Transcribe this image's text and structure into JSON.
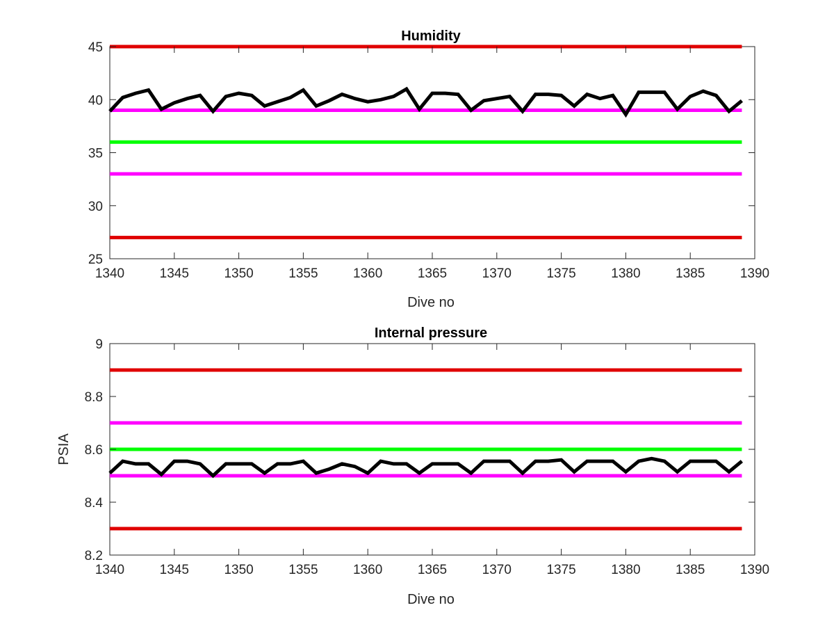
{
  "chart_data": [
    {
      "type": "line",
      "title": "Humidity",
      "xlabel": "Dive no",
      "ylabel": "",
      "xlim": [
        1340,
        1390
      ],
      "ylim": [
        25,
        45
      ],
      "xticks": [
        1340,
        1345,
        1350,
        1355,
        1360,
        1365,
        1370,
        1375,
        1380,
        1385,
        1390
      ],
      "yticks": [
        25,
        30,
        35,
        40,
        45
      ],
      "grid": false,
      "reference_lines": [
        {
          "y": 45,
          "color": "#e00000"
        },
        {
          "y": 39,
          "color": "#ff00ff"
        },
        {
          "y": 36,
          "color": "#00ff00"
        },
        {
          "y": 33,
          "color": "#ff00ff"
        },
        {
          "y": 27,
          "color": "#e00000"
        }
      ],
      "series": [
        {
          "color": "#000000",
          "x": [
            1340,
            1341,
            1342,
            1343,
            1344,
            1345,
            1346,
            1347,
            1348,
            1349,
            1350,
            1351,
            1352,
            1353,
            1354,
            1355,
            1356,
            1357,
            1358,
            1359,
            1360,
            1361,
            1362,
            1363,
            1364,
            1365,
            1366,
            1367,
            1368,
            1369,
            1370,
            1371,
            1372,
            1373,
            1374,
            1375,
            1376,
            1377,
            1378,
            1379,
            1380,
            1381,
            1382,
            1383,
            1384,
            1385,
            1386,
            1387,
            1388,
            1389
          ],
          "y": [
            38.9,
            40.2,
            40.6,
            40.9,
            39.1,
            39.7,
            40.1,
            40.4,
            38.9,
            40.3,
            40.6,
            40.4,
            39.4,
            39.8,
            40.2,
            40.9,
            39.4,
            39.9,
            40.5,
            40.1,
            39.8,
            40.0,
            40.3,
            41.0,
            39.1,
            40.6,
            40.6,
            40.5,
            39.0,
            39.9,
            40.1,
            40.3,
            38.9,
            40.5,
            40.5,
            40.4,
            39.4,
            40.5,
            40.1,
            40.4,
            38.6,
            40.7,
            40.7,
            40.7,
            39.1,
            40.3,
            40.8,
            40.4,
            38.9,
            39.9
          ]
        }
      ]
    },
    {
      "type": "line",
      "title": "Internal pressure",
      "xlabel": "Dive no",
      "ylabel": "PSIA",
      "xlim": [
        1340,
        1390
      ],
      "ylim": [
        8.2,
        9
      ],
      "xticks": [
        1340,
        1345,
        1350,
        1355,
        1360,
        1365,
        1370,
        1375,
        1380,
        1385,
        1390
      ],
      "yticks": [
        8.2,
        8.4,
        8.6,
        8.8,
        9
      ],
      "grid": false,
      "reference_lines": [
        {
          "y": 8.9,
          "color": "#e00000"
        },
        {
          "y": 8.7,
          "color": "#ff00ff"
        },
        {
          "y": 8.6,
          "color": "#00ff00"
        },
        {
          "y": 8.5,
          "color": "#ff00ff"
        },
        {
          "y": 8.3,
          "color": "#e00000"
        }
      ],
      "series": [
        {
          "color": "#000000",
          "x": [
            1340,
            1341,
            1342,
            1343,
            1344,
            1345,
            1346,
            1347,
            1348,
            1349,
            1350,
            1351,
            1352,
            1353,
            1354,
            1355,
            1356,
            1357,
            1358,
            1359,
            1360,
            1361,
            1362,
            1363,
            1364,
            1365,
            1366,
            1367,
            1368,
            1369,
            1370,
            1371,
            1372,
            1373,
            1374,
            1375,
            1376,
            1377,
            1378,
            1379,
            1380,
            1381,
            1382,
            1383,
            1384,
            1385,
            1386,
            1387,
            1388,
            1389
          ],
          "y": [
            8.51,
            8.555,
            8.545,
            8.545,
            8.505,
            8.555,
            8.555,
            8.545,
            8.5,
            8.545,
            8.545,
            8.545,
            8.51,
            8.545,
            8.545,
            8.555,
            8.51,
            8.525,
            8.545,
            8.535,
            8.51,
            8.555,
            8.545,
            8.545,
            8.51,
            8.545,
            8.545,
            8.545,
            8.51,
            8.555,
            8.555,
            8.555,
            8.51,
            8.555,
            8.555,
            8.56,
            8.515,
            8.555,
            8.555,
            8.555,
            8.515,
            8.555,
            8.565,
            8.555,
            8.515,
            8.555,
            8.555,
            8.555,
            8.515,
            8.555
          ]
        }
      ]
    }
  ]
}
